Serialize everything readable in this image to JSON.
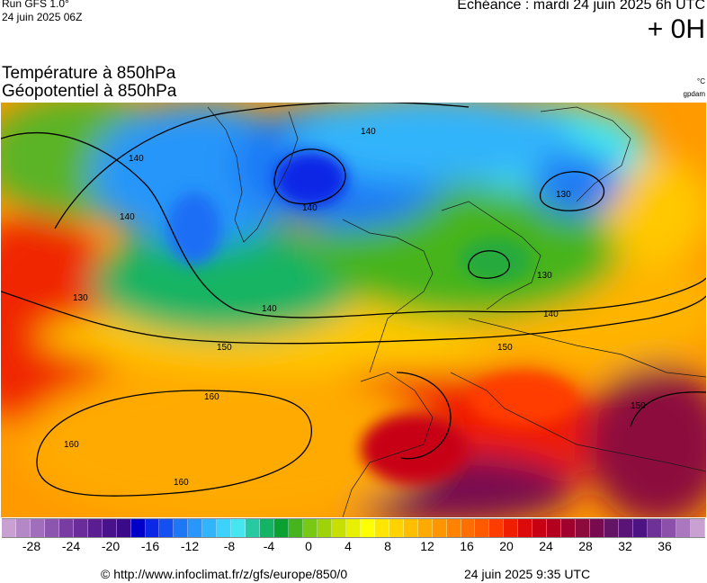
{
  "header": {
    "run_line1": "Run GFS 1.0°",
    "run_line2": "24 juin 2025 06Z",
    "echeance": "Echéance : mardi 24 juin 2025 6h UTC",
    "lead": "+ 0H",
    "title1": "Température à 850hPa",
    "title2": "Géopotentiel à 850hPa",
    "unit_temp": "°C",
    "unit_geo": "gpdam"
  },
  "map": {
    "contour_labels": [
      "140",
      "140",
      "140",
      "140",
      "140",
      "130",
      "130",
      "130",
      "150",
      "150",
      "150",
      "160",
      "160",
      "160",
      "140"
    ]
  },
  "legend": {
    "ticks": [
      "-28",
      "-24",
      "-20",
      "-16",
      "-12",
      "-8",
      "-4",
      "0",
      "4",
      "8",
      "12",
      "16",
      "20",
      "24",
      "28",
      "32",
      "36"
    ],
    "colors": [
      "#c8a0d2",
      "#b487c6",
      "#a06eba",
      "#8c55ae",
      "#783ca2",
      "#6a2c98",
      "#5a1e90",
      "#4a128a",
      "#3a0a88",
      "#0000c8",
      "#0a28e6",
      "#1450f0",
      "#1e78f5",
      "#2896fa",
      "#32b4fa",
      "#3cd2fa",
      "#46e6f0",
      "#28c8a0",
      "#14b464",
      "#0aa032",
      "#46b41e",
      "#78c814",
      "#a0d20a",
      "#c8e000",
      "#e6f000",
      "#ffff00",
      "#ffe600",
      "#ffd200",
      "#ffbe00",
      "#ffaa00",
      "#ff9600",
      "#ff8200",
      "#ff6e00",
      "#ff5a00",
      "#ff3c00",
      "#f01e00",
      "#dc0a0a",
      "#c80014",
      "#b4001e",
      "#a0002d",
      "#8c0a3c",
      "#780a50",
      "#641464",
      "#5a1478",
      "#4b1482",
      "#6e3296",
      "#8c50aa",
      "#aa78be",
      "#c8a0d2"
    ]
  },
  "footer": {
    "url": "© http://www.infoclimat.fr/z/gfs/europe/850/0",
    "timestamp": "24 juin 2025  9:35 UTC"
  }
}
